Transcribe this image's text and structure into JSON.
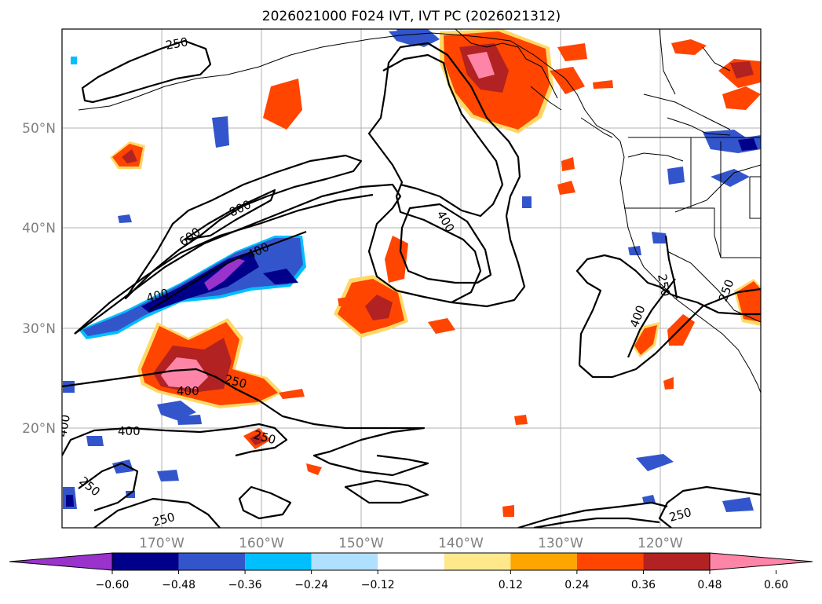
{
  "title": "2026021000 F024 IVT, IVT PC (2026021312)",
  "map": {
    "lat_ticks": [
      "50°N",
      "40°N",
      "30°N",
      "20°N"
    ],
    "lon_ticks": [
      "170°W",
      "160°W",
      "150°W",
      "140°W",
      "130°W",
      "120°W"
    ],
    "contour_labels": [
      "250",
      "800",
      "600",
      "400",
      "400",
      "400",
      "250",
      "400",
      "400",
      "250",
      "250",
      "400",
      "250",
      "250",
      "250",
      "400",
      "250",
      "250"
    ],
    "tick_label_color": "#808080"
  },
  "colorbar": {
    "ticks": [
      "−0.60",
      "−0.48",
      "−0.36",
      "−0.24",
      "−0.12",
      "0.12",
      "0.24",
      "0.36",
      "0.48",
      "0.60"
    ],
    "colors": [
      "#9933cc",
      "#00008b",
      "#3355cc",
      "#00bfff",
      "#b0e0ff",
      "#ffffff",
      "#ffe88c",
      "#ffa500",
      "#ff4500",
      "#b22222",
      "#ff85a8"
    ]
  }
}
